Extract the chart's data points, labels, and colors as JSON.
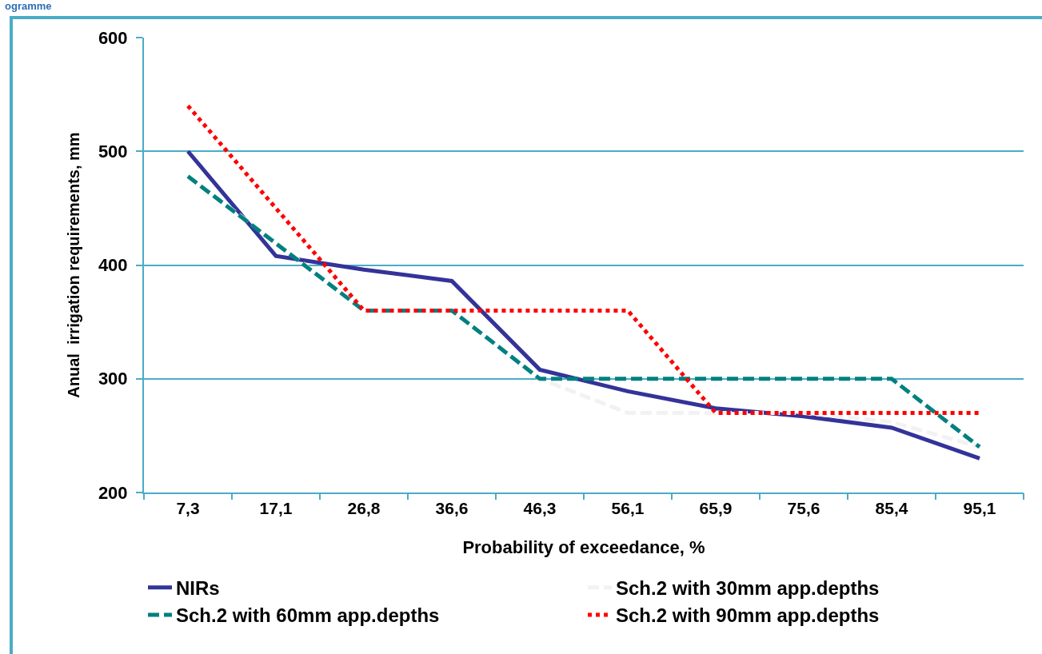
{
  "chart_data": {
    "type": "line",
    "xlabel": "Probability of exceedance, %",
    "ylabel": "Anual  irrigation requirements, mm",
    "annotations": [
      "ogramme"
    ],
    "categories": [
      "7,3",
      "17,1",
      "26,8",
      "36,6",
      "46,3",
      "56,1",
      "65,9",
      "75,6",
      "85,4",
      "95,1"
    ],
    "series": [
      {
        "name": "NIRs",
        "color": "#333399",
        "line_style": "solid",
        "values": [
          500,
          408,
          396,
          386,
          308,
          289,
          274,
          267,
          257,
          230
        ]
      },
      {
        "name": "Sch.2 with 30mm app.depths",
        "color": "#f2f2f2",
        "line_style": "dashed",
        "values": [
          478,
          420,
          360,
          360,
          300,
          270,
          270,
          270,
          262,
          240
        ]
      },
      {
        "name": "Sch.2 with 60mm app.depths",
        "color": "#008080",
        "line_style": "dashed",
        "values": [
          478,
          419,
          360,
          360,
          300,
          300,
          300,
          300,
          300,
          240
        ]
      },
      {
        "name": "Sch.2 with 90mm app.depths",
        "color": "#ff0000",
        "line_style": "dotted",
        "values": [
          540,
          450,
          360,
          360,
          360,
          360,
          270,
          270,
          270,
          270
        ]
      }
    ],
    "ylim": [
      200,
      600
    ],
    "yticks": [
      200,
      300,
      400,
      500,
      600
    ],
    "grid": "y",
    "legend": "bottom",
    "marker": "none"
  }
}
